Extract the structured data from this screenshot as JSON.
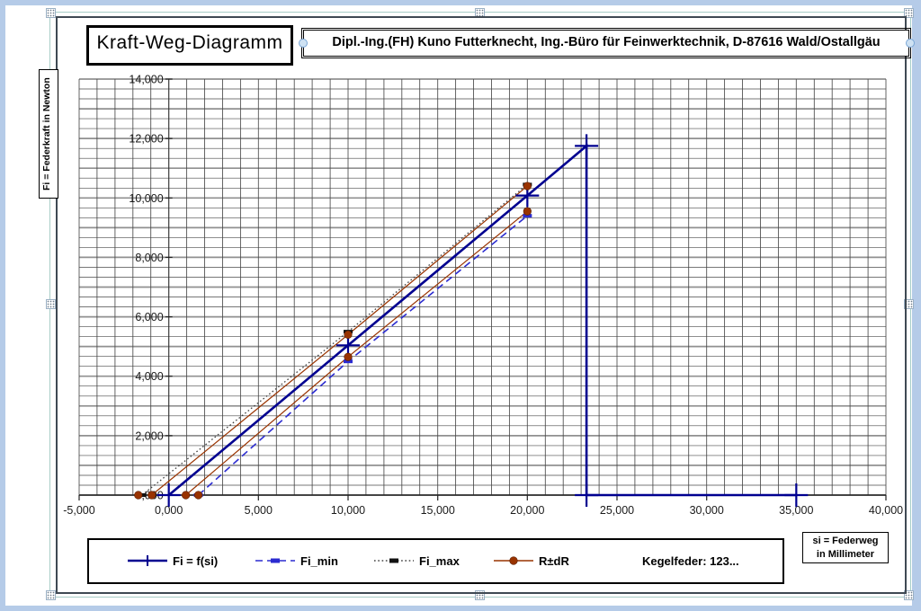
{
  "window": {
    "frame_color": "#b5cbe8"
  },
  "title_box": {
    "text": "Kraft-Weg-Diagramm"
  },
  "header_box": {
    "text": "Dipl.-Ing.(FH) Kuno Futterknecht, Ing.-Büro für Feinwerktechnik, D-87616 Wald/Ostallgäu"
  },
  "y_axis_title": {
    "text": "Fi = Federkraft in Newton"
  },
  "x_axis_title": {
    "line1": "si = Federweg",
    "line2": "in Millimeter"
  },
  "legend": {
    "items": [
      {
        "label": "Fi = f(si)",
        "color": "#000090",
        "dash": "solid",
        "marker": "plus",
        "marker_color": "#000090"
      },
      {
        "label": "Fi_min",
        "color": "#2b2bd0",
        "dash": "dashed",
        "marker": "hdash",
        "marker_color": "#2b2bd0"
      },
      {
        "label": "Fi_max",
        "color": "#404040",
        "dash": "dotted",
        "marker": "hdash",
        "marker_color": "#111111"
      },
      {
        "label": "R±dR",
        "color": "#993300",
        "dash": "solid",
        "marker": "circle",
        "marker_color": "#993300"
      },
      {
        "label": "Kegelfeder: 123...",
        "color": "",
        "dash": "none",
        "marker": "none",
        "marker_color": ""
      }
    ]
  },
  "chart_data": {
    "type": "line",
    "title": "Kraft-Weg-Diagramm",
    "xlabel": "si = Federweg in Millimeter",
    "ylabel": "Fi = Federkraft in Newton",
    "xlim": [
      -5,
      40
    ],
    "ylim": [
      0,
      14
    ],
    "grid": {
      "x_minor_step": 1,
      "y_minor_step": 0.3333,
      "y_major_step": 1,
      "on": true
    },
    "legend_position": "bottom",
    "x_tick_values": [
      -5,
      0,
      5,
      10,
      15,
      20,
      25,
      30,
      35,
      40
    ],
    "x_tick_labels": [
      "-5,000",
      "0,000",
      "5,000",
      "10,000",
      "15,000",
      "20,000",
      "25,000",
      "30,000",
      "35,000",
      "40,000"
    ],
    "y_tick_values": [
      0,
      2,
      4,
      6,
      8,
      10,
      12,
      14
    ],
    "y_tick_labels": [
      "0,000",
      "2,000",
      "4,000",
      "6,000",
      "8,000",
      "10,000",
      "12,000",
      "14,000"
    ],
    "series": [
      {
        "name": "Fi_min",
        "color": "#2b2bd0",
        "dash": "dashed",
        "width": 1.6,
        "marker": "hdash",
        "marker_color": "#2b2bd0",
        "points": [
          [
            1.65,
            0
          ],
          [
            10,
            4.5
          ],
          [
            20,
            9.4
          ]
        ]
      },
      {
        "name": "Fi_max",
        "color": "#404040",
        "dash": "dotted",
        "width": 1.3,
        "marker": "hdash",
        "marker_color": "#111111",
        "points": [
          [
            -1.5,
            0
          ],
          [
            10,
            5.5
          ],
          [
            20,
            10.45
          ]
        ]
      },
      {
        "name": "R+dR",
        "color": "#993300",
        "dash": "solid",
        "width": 1.2,
        "marker": "circle",
        "marker_color": "#993300",
        "points": [
          [
            -0.95,
            0
          ],
          [
            10,
            5.4
          ],
          [
            20,
            10.4
          ]
        ]
      },
      {
        "name": "R-dR",
        "color": "#993300",
        "dash": "solid",
        "width": 1.2,
        "marker": "circle",
        "marker_color": "#993300",
        "points": [
          [
            0.95,
            0
          ],
          [
            10,
            4.65
          ],
          [
            20,
            9.55
          ]
        ]
      },
      {
        "name": "R±dR-zero-markers",
        "color": "#993300",
        "dash": "none",
        "width": 0,
        "marker": "circle",
        "marker_color": "#993300",
        "points": [
          [
            -1.7,
            0
          ],
          [
            1.65,
            0
          ]
        ]
      },
      {
        "name": "Fi = f(si)",
        "color": "#000090",
        "dash": "solid",
        "width": 2.6,
        "marker": "plus",
        "marker_color": "#000090",
        "points": [
          [
            0,
            0
          ],
          [
            10,
            5.04
          ],
          [
            20,
            10.08
          ],
          [
            23.3,
            11.75
          ],
          [
            23.3,
            0
          ],
          [
            35,
            0
          ]
        ]
      }
    ]
  }
}
